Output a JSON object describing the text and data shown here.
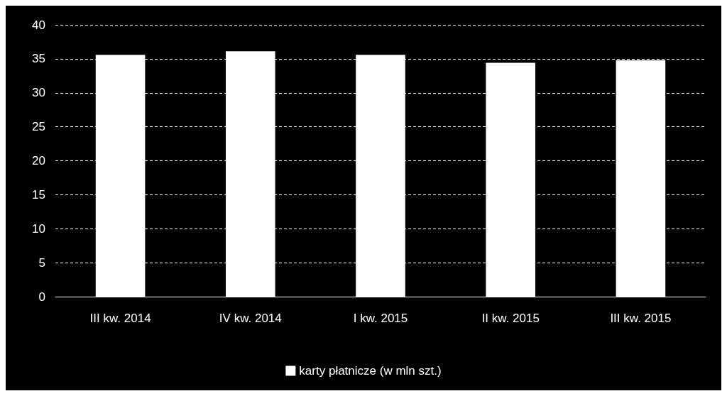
{
  "chart_data": {
    "type": "bar",
    "categories": [
      "III kw. 2014",
      "IV kw. 2014",
      "I kw. 2015",
      "II kw. 2015",
      "III kw. 2015"
    ],
    "series": [
      {
        "name": "karty płatnicze (w mln szt.)",
        "color": "#ffffff",
        "values": [
          35.6,
          36.1,
          35.6,
          34.4,
          34.8
        ]
      }
    ],
    "ylim": [
      0,
      40
    ],
    "yticks": [
      0,
      5,
      10,
      15,
      20,
      25,
      30,
      35,
      40
    ],
    "grid": "y",
    "legend": "bottom"
  }
}
